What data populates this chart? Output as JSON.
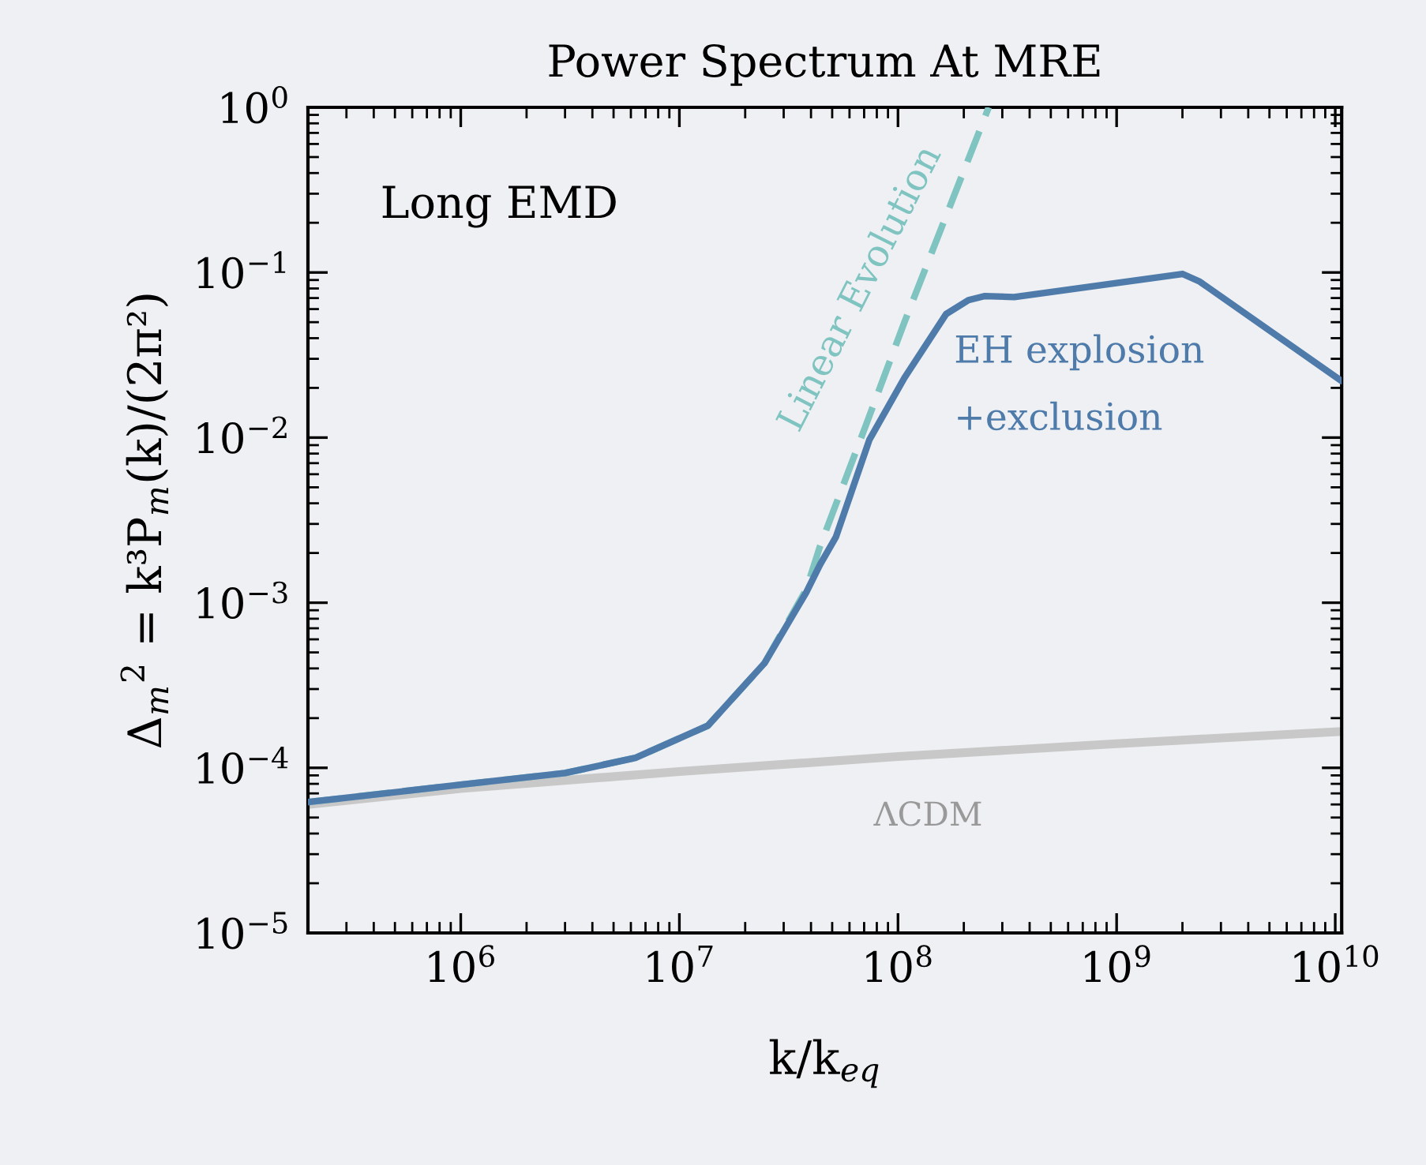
{
  "chart_data": {
    "type": "line",
    "title": "Power Spectrum At MRE",
    "xlabel": "k/k$_{eq}$",
    "ylabel": "Δ$_{m}$$^{2}$ = k³P$_{m}$(k)/(2π²)",
    "log": "xy",
    "grid": false,
    "legend": false,
    "line_style": "solid",
    "marker": "none",
    "xlim": [
      200000.0,
      10700000000.0
    ],
    "ylim": [
      1e-05,
      1
    ],
    "xticks": [
      {
        "value": 1000000.0,
        "label": "10$^{6}$"
      },
      {
        "value": 10000000.0,
        "label": "10$^{7}$"
      },
      {
        "value": 100000000.0,
        "label": "10$^{8}$"
      },
      {
        "value": 1000000000.0,
        "label": "10$^{9}$"
      },
      {
        "value": 10000000000.0,
        "label": "10$^{10}$"
      }
    ],
    "yticks": [
      {
        "value": 1e-05,
        "label": "10$^{−5}$"
      },
      {
        "value": 0.0001,
        "label": "10$^{−4}$"
      },
      {
        "value": 0.001,
        "label": "10$^{−3}$"
      },
      {
        "value": 0.01,
        "label": "10$^{−2}$"
      },
      {
        "value": 0.1,
        "label": "10$^{−1}$"
      },
      {
        "value": 1,
        "label": "10$^{0}$"
      }
    ],
    "annotations": [
      "Long EMD"
    ],
    "series": [
      {
        "name": "ΛCDM",
        "color": "#c8c8c8",
        "x": [
          200000.0,
          1000000.0,
          10000000.0,
          100000000.0,
          1000000000.0,
          10700000000.0
        ],
        "values": [
          6e-05,
          7.5e-05,
          9.5e-05,
          0.000117,
          0.00014,
          0.000166
        ]
      },
      {
        "name": "Linear Evolution",
        "color": "#7fc4c0",
        "line_style": "dashed",
        "x": [
          200000.0,
          1000000.0,
          3000000.0,
          6300000.0,
          13500000.0,
          24500000.0,
          38000000.0,
          44000000.0,
          71000000.0,
          107000000.0,
          260000000.0
        ],
        "values": [
          6.2e-05,
          7.9e-05,
          9.3e-05,
          0.000115,
          0.00018,
          0.00043,
          0.0012,
          0.0022,
          0.0117,
          0.05,
          1.0
        ]
      },
      {
        "name": "EH explosion\n+exclusion",
        "color": "#4f7bab",
        "x": [
          200000.0,
          1000000.0,
          3000000.0,
          6300000.0,
          13500000.0,
          24500000.0,
          38000000.0,
          44000000.0,
          52000000.0,
          74000000.0,
          107000000.0,
          166000000.0,
          210000000.0,
          250000000.0,
          340000000.0,
          2000000000.0,
          2400000000.0,
          10700000000.0
        ],
        "values": [
          6.2e-05,
          7.9e-05,
          9.3e-05,
          0.000115,
          0.00018,
          0.00043,
          0.00115,
          0.0017,
          0.0025,
          0.0097,
          0.023,
          0.056,
          0.068,
          0.072,
          0.071,
          0.098,
          0.088,
          0.022
        ]
      }
    ]
  }
}
